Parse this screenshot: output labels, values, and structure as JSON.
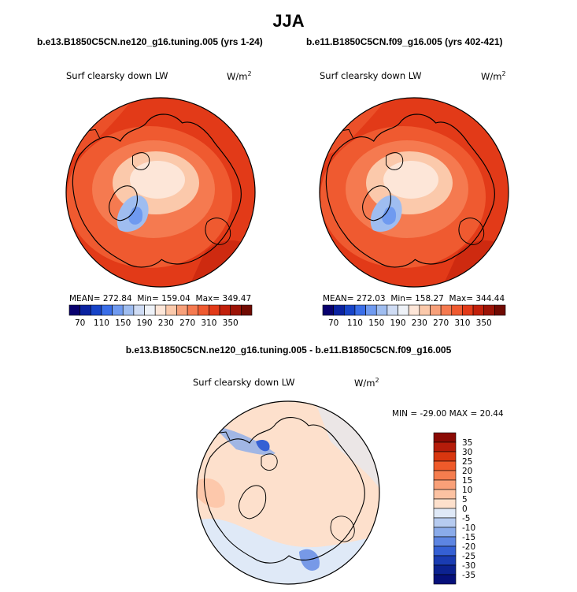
{
  "title": "JJA",
  "panels": [
    {
      "case": "b.e13.B1850C5CN.ne120_g16.tuning.005 (yrs 1-24)",
      "variable": "Surf clearsky down LW",
      "units": "W/m",
      "units_sup": "2",
      "stats": {
        "mean_label": "MEAN=",
        "mean": "272.84",
        "min_label": "Min=",
        "min": "159.04",
        "max_label": "Max=",
        "max": "349.47"
      }
    },
    {
      "case": "b.e11.B1850C5CN.f09_g16.005 (yrs 402-421)",
      "variable": "Surf clearsky down LW",
      "units": "W/m",
      "units_sup": "2",
      "stats": {
        "mean_label": "MEAN=",
        "mean": "272.03",
        "min_label": "Min=",
        "min": "158.27",
        "max_label": "Max=",
        "max": "344.44"
      }
    }
  ],
  "difference": {
    "title": "b.e13.B1850C5CN.ne120_g16.tuning.005 - b.e11.B1850C5CN.f09_g16.005",
    "variable": "Surf clearsky down LW",
    "units": "W/m",
    "units_sup": "2",
    "stats": "MIN = -29.00 MAX =  20.44"
  },
  "chart_data": [
    {
      "type": "heatmap",
      "projection": "north-polar-stereographic",
      "title": "Surf clearsky down LW",
      "units": "W/m2",
      "colorbar": {
        "orientation": "horizontal",
        "ticks": [
          "70",
          "110",
          "150",
          "190",
          "230",
          "270",
          "310",
          "350"
        ],
        "colors": [
          "#08006e",
          "#0a22a0",
          "#1744c8",
          "#3a6ee8",
          "#6f9af0",
          "#9fbdf0",
          "#cfdcf4",
          "#eef2f8",
          "#fde6d8",
          "#fbc9ab",
          "#f7a07a",
          "#f57a50",
          "#ef5a30",
          "#e23a18",
          "#c2200b",
          "#9c1306",
          "#700a02"
        ]
      },
      "mean": 272.84,
      "min": 159.04,
      "max": 349.47
    },
    {
      "type": "heatmap",
      "projection": "north-polar-stereographic",
      "title": "Surf clearsky down LW",
      "units": "W/m2",
      "colorbar": {
        "orientation": "horizontal",
        "ticks": [
          "70",
          "110",
          "150",
          "190",
          "230",
          "270",
          "310",
          "350"
        ]
      },
      "mean": 272.03,
      "min": 158.27,
      "max": 344.44
    },
    {
      "type": "heatmap",
      "projection": "north-polar-stereographic",
      "title": "Surf clearsky down LW",
      "units": "W/m2",
      "colorbar": {
        "orientation": "vertical",
        "ticks": [
          "35",
          "30",
          "25",
          "20",
          "15",
          "10",
          "5",
          "0",
          "-5",
          "-10",
          "-15",
          "-20",
          "-25",
          "-30",
          "-35"
        ],
        "colors": [
          "#8b0a04",
          "#b51c0a",
          "#d8360f",
          "#ef5a2a",
          "#f57d4e",
          "#f9a078",
          "#fcc2a2",
          "#fde0cc",
          "#dfe9f7",
          "#b6cbf0",
          "#8aabea",
          "#5d85e2",
          "#3560d4",
          "#1a3cb2",
          "#0c2290",
          "#06107a"
        ]
      },
      "min": -29.0,
      "max": 20.44
    }
  ]
}
